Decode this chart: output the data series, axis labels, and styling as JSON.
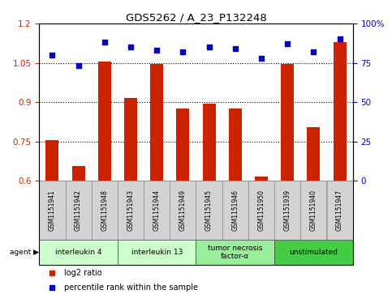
{
  "title": "GDS5262 / A_23_P132248",
  "samples": [
    "GSM1151941",
    "GSM1151942",
    "GSM1151948",
    "GSM1151943",
    "GSM1151944",
    "GSM1151949",
    "GSM1151945",
    "GSM1151946",
    "GSM1151950",
    "GSM1151939",
    "GSM1151940",
    "GSM1151947"
  ],
  "log2_ratio": [
    0.755,
    0.655,
    1.055,
    0.915,
    1.045,
    0.875,
    0.895,
    0.875,
    0.615,
    1.045,
    0.805,
    1.13
  ],
  "percentile": [
    80,
    73,
    88,
    85,
    83,
    82,
    85,
    84,
    78,
    87,
    82,
    90
  ],
  "agents": [
    {
      "label": "interleukin 4",
      "start": 0,
      "end": 3,
      "color": "#ccffcc"
    },
    {
      "label": "interleukin 13",
      "start": 3,
      "end": 6,
      "color": "#ccffcc"
    },
    {
      "label": "tumor necrosis\nfactor-α",
      "start": 6,
      "end": 9,
      "color": "#99ee99"
    },
    {
      "label": "unstimulated",
      "start": 9,
      "end": 12,
      "color": "#44cc44"
    }
  ],
  "bar_color": "#cc2200",
  "dot_color": "#0000cc",
  "ylim_left": [
    0.6,
    1.2
  ],
  "ylim_right": [
    0,
    100
  ],
  "yticks_left": [
    0.6,
    0.75,
    0.9,
    1.05,
    1.2
  ],
  "yticks_right": [
    0,
    25,
    50,
    75,
    100
  ],
  "ytick_labels_right": [
    "0",
    "25",
    "50",
    "75",
    "100%"
  ],
  "hlines": [
    0.75,
    0.9,
    1.05
  ],
  "bar_width": 0.5
}
